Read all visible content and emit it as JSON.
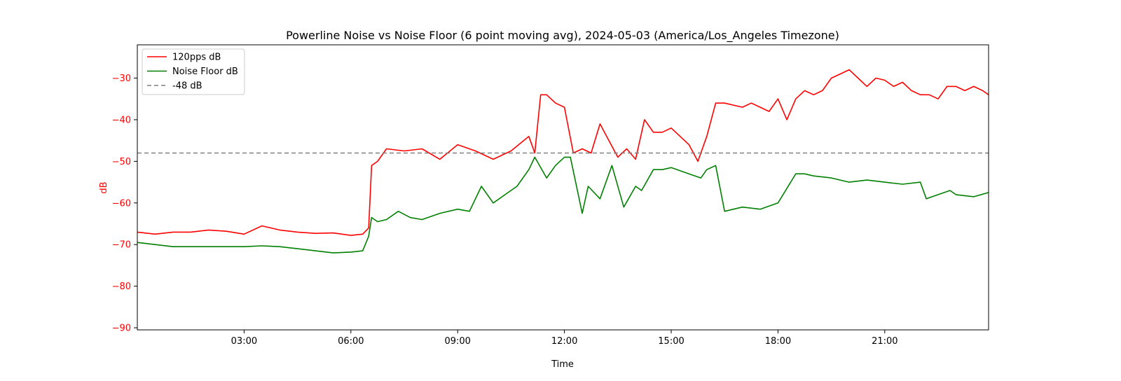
{
  "chart_data": {
    "type": "line",
    "title": "Powerline Noise vs Noise Floor (6 point moving avg), 2024-05-03 (America/Los_Angeles Timezone)",
    "xlabel": "Time",
    "ylabel": "dB",
    "xlim": [
      "00:00",
      "23:55"
    ],
    "ylim": [
      -90.5,
      -22
    ],
    "x_ticks": [
      "03:00",
      "06:00",
      "09:00",
      "12:00",
      "15:00",
      "18:00",
      "21:00"
    ],
    "y_ticks": [
      -90,
      -80,
      -70,
      -60,
      -50,
      -40,
      -30
    ],
    "grid": false,
    "legend_position": "upper-left",
    "ylabel_color": "#ff0000",
    "series": [
      {
        "name": "120pps dB",
        "color": "#ff0000",
        "style": "solid",
        "x": [
          "00:00",
          "00:30",
          "01:00",
          "01:30",
          "02:00",
          "02:30",
          "03:00",
          "03:30",
          "04:00",
          "04:30",
          "05:00",
          "05:30",
          "06:00",
          "06:20",
          "06:30",
          "06:35",
          "06:45",
          "07:00",
          "07:30",
          "08:00",
          "08:30",
          "09:00",
          "09:30",
          "10:00",
          "10:30",
          "11:00",
          "11:10",
          "11:20",
          "11:30",
          "11:45",
          "12:00",
          "12:15",
          "12:30",
          "12:45",
          "13:00",
          "13:15",
          "13:30",
          "13:45",
          "14:00",
          "14:15",
          "14:30",
          "14:45",
          "15:00",
          "15:15",
          "15:30",
          "15:45",
          "16:00",
          "16:15",
          "16:30",
          "17:00",
          "17:15",
          "17:30",
          "17:45",
          "18:00",
          "18:15",
          "18:30",
          "18:45",
          "19:00",
          "19:15",
          "19:30",
          "19:45",
          "20:00",
          "20:15",
          "20:30",
          "20:45",
          "21:00",
          "21:15",
          "21:30",
          "21:45",
          "22:00",
          "22:15",
          "22:30",
          "22:45",
          "23:00",
          "23:15",
          "23:30",
          "23:45",
          "23:55"
        ],
        "values": [
          -67,
          -67.5,
          -67,
          -67,
          -66.5,
          -66.8,
          -67.5,
          -65.5,
          -66.5,
          -67,
          -67.3,
          -67.2,
          -67.8,
          -67.5,
          -66,
          -51,
          -50,
          -47,
          -47.5,
          -47,
          -49.5,
          -46,
          -47.5,
          -49.5,
          -47.5,
          -44,
          -48,
          -34,
          -34,
          -36,
          -37,
          -48,
          -47,
          -48,
          -41,
          -45,
          -49,
          -47,
          -49.5,
          -40,
          -43,
          -43,
          -42,
          -44,
          -46,
          -50,
          -44,
          -36,
          -36,
          -37,
          -36,
          -37,
          -38,
          -35,
          -40,
          -35,
          -33,
          -34,
          -33,
          -30,
          -29,
          -28,
          -30,
          -32,
          -30,
          -30.5,
          -32,
          -31,
          -33,
          -34,
          -34,
          -35,
          -32,
          -32,
          -33,
          -32,
          -33,
          -34
        ]
      },
      {
        "name": "Noise Floor dB",
        "color": "#008000",
        "style": "solid",
        "x": [
          "00:00",
          "00:30",
          "01:00",
          "01:30",
          "02:00",
          "02:30",
          "03:00",
          "03:30",
          "04:00",
          "04:30",
          "05:00",
          "05:30",
          "06:00",
          "06:20",
          "06:30",
          "06:35",
          "06:45",
          "07:00",
          "07:20",
          "07:40",
          "08:00",
          "08:30",
          "09:00",
          "09:20",
          "09:40",
          "10:00",
          "10:20",
          "10:40",
          "11:00",
          "11:10",
          "11:30",
          "11:45",
          "12:00",
          "12:10",
          "12:30",
          "12:40",
          "13:00",
          "13:20",
          "13:40",
          "14:00",
          "14:10",
          "14:30",
          "14:45",
          "15:00",
          "15:30",
          "15:50",
          "16:00",
          "16:15",
          "16:30",
          "16:45",
          "17:00",
          "17:30",
          "18:00",
          "18:30",
          "18:45",
          "19:00",
          "19:30",
          "20:00",
          "20:30",
          "21:00",
          "21:30",
          "22:00",
          "22:10",
          "22:30",
          "22:50",
          "23:00",
          "23:30",
          "23:55"
        ],
        "values": [
          -69.5,
          -70,
          -70.5,
          -70.5,
          -70.5,
          -70.5,
          -70.5,
          -70.3,
          -70.5,
          -71,
          -71.5,
          -72,
          -71.8,
          -71.5,
          -68,
          -63.5,
          -64.5,
          -64,
          -62,
          -63.5,
          -64,
          -62.5,
          -61.5,
          -62,
          -56,
          -60,
          -58,
          -56,
          -52,
          -49,
          -54,
          -51,
          -49,
          -49,
          -62.5,
          -56,
          -59,
          -51,
          -61,
          -56,
          -57,
          -52,
          -52,
          -51.5,
          -53,
          -54,
          -52,
          -51,
          -62,
          -61.5,
          -61,
          -61.5,
          -60,
          -53,
          -53,
          -53.5,
          -54,
          -55,
          -54.5,
          -55,
          -55.5,
          -55,
          -59,
          -58,
          -57,
          -58,
          -58.5,
          -57.5
        ]
      },
      {
        "name": "-48 dB",
        "color": "#808080",
        "style": "dashed",
        "x": [
          "00:00",
          "23:55"
        ],
        "values": [
          -48,
          -48
        ]
      }
    ]
  }
}
